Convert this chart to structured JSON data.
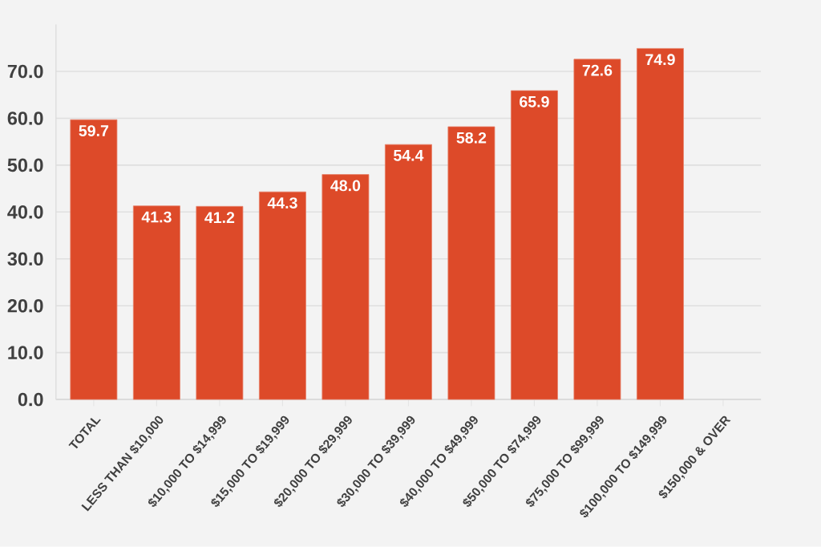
{
  "chart_data": {
    "type": "bar",
    "categories": [
      "TOTAL",
      "LESS THAN $10,000",
      "$10,000 TO $14,999",
      "$15,000 TO $19,999",
      "$20,000 TO $29,999",
      "$30,000 TO $39,999",
      "$40,000 TO $49,999",
      "$50,000 TO $74,999",
      "$75,000 TO $99,999",
      "$100,000 TO $149,999",
      "$150,000 & OVER"
    ],
    "values": [
      59.7,
      41.3,
      41.2,
      44.3,
      48.0,
      54.4,
      58.2,
      65.9,
      72.6,
      74.9,
      null
    ],
    "value_labels": [
      "59.7",
      "41.3",
      "41.2",
      "44.3",
      "48.0",
      "54.4",
      "58.2",
      "65.9",
      "72.6",
      "74.9",
      null
    ],
    "color": "#dd4a29",
    "ylim": [
      0,
      80
    ],
    "yticks": [
      {
        "value": 0,
        "label": "0.0"
      },
      {
        "value": 10,
        "label": "10.0"
      },
      {
        "value": 20,
        "label": "20.0"
      },
      {
        "value": 30,
        "label": "30.0"
      },
      {
        "value": 40,
        "label": "40.0"
      },
      {
        "value": 50,
        "label": "50.0"
      },
      {
        "value": 60,
        "label": "60.0"
      },
      {
        "value": 70,
        "label": "70.0"
      }
    ],
    "grid": "y"
  }
}
